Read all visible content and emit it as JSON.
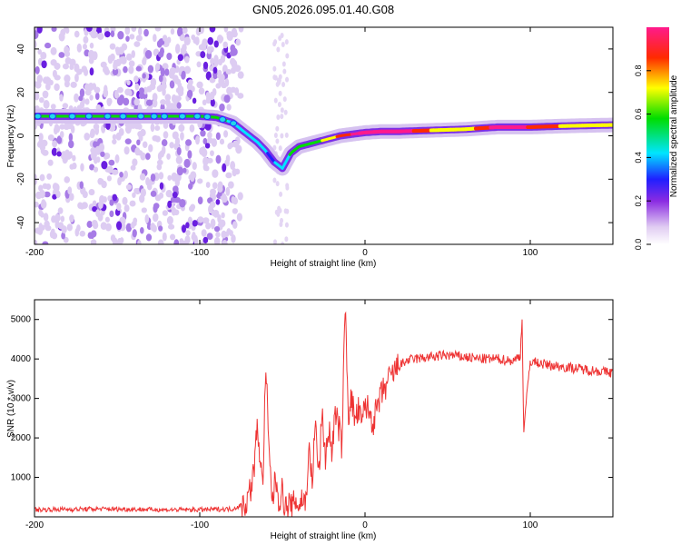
{
  "title": "GN05.2026.095.01.40.G08",
  "chart_data": [
    {
      "type": "heatmap",
      "title": "GN05.2026.095.01.40.G08",
      "xlabel": "Height of straight line (km)",
      "ylabel": "Frequency (Hz)",
      "xlim": [
        -200,
        150
      ],
      "ylim": [
        -50,
        50
      ],
      "x_ticks": [
        -200,
        -100,
        0,
        100
      ],
      "y_ticks": [
        -40,
        -20,
        0,
        20,
        40
      ],
      "x_tick_labels": [
        "-200",
        "-100",
        "0",
        "100"
      ],
      "y_tick_labels": [
        "-40",
        "-20",
        "0",
        "20",
        "40"
      ],
      "colorbar": {
        "label": "Normalized spectral amplitude",
        "range": [
          0,
          1
        ],
        "ticks": [
          0.0,
          0.2,
          0.4,
          0.6,
          0.8
        ],
        "tick_labels": [
          "0.0",
          "0.2",
          "0.4",
          "0.6",
          "0.8"
        ]
      },
      "ridge": {
        "x": [
          -200,
          -180,
          -160,
          -140,
          -120,
          -100,
          -90,
          -80,
          -75,
          -70,
          -65,
          -60,
          -55,
          -50,
          -45,
          -40,
          -35,
          -30,
          -25,
          -20,
          -15,
          -10,
          -5,
          0,
          10,
          20,
          40,
          60,
          80,
          100,
          120,
          150
        ],
        "frequency": [
          9,
          9,
          9,
          9,
          9,
          9,
          8.5,
          6,
          3,
          0,
          -3,
          -7,
          -12,
          -15,
          -8,
          -5,
          -4,
          -3,
          -2,
          -1,
          0,
          0.5,
          1,
          1.5,
          2,
          2,
          2.5,
          3,
          4,
          4,
          4.5,
          5
        ],
        "amplitude": [
          0.45,
          0.5,
          0.5,
          0.45,
          0.5,
          0.45,
          0.45,
          0.4,
          0.4,
          0.35,
          0.35,
          0.3,
          0.3,
          0.35,
          0.45,
          0.45,
          0.55,
          0.55,
          0.6,
          0.65,
          0.8,
          0.85,
          0.9,
          0.95,
          0.95,
          1.0,
          0.7,
          0.6,
          0.95,
          0.85,
          0.7,
          0.6
        ]
      },
      "noise_region": {
        "x_from": -200,
        "x_to": -75,
        "note": "scattered low-amplitude spectral noise"
      }
    },
    {
      "type": "line",
      "title": "",
      "xlabel": "Height of straight line (km)",
      "ylabel": "SNR (10 * v/v)",
      "xlim": [
        -200,
        150
      ],
      "ylim": [
        0,
        5500
      ],
      "x_ticks": [
        -200,
        -100,
        0,
        100
      ],
      "y_ticks": [
        1000,
        2000,
        3000,
        4000,
        5000
      ],
      "x_tick_labels": [
        "-200",
        "-100",
        "0",
        "100"
      ],
      "y_tick_labels": [
        "1000",
        "2000",
        "3000",
        "4000",
        "5000"
      ],
      "color": "#ee3333",
      "x": [
        -200,
        -160,
        -120,
        -100,
        -80,
        -72,
        -68,
        -65,
        -62,
        -60,
        -58,
        -56,
        -54,
        -52,
        -50,
        -48,
        -46,
        -44,
        -42,
        -40,
        -38,
        -36,
        -34,
        -32,
        -30,
        -28,
        -26,
        -24,
        -22,
        -20,
        -18,
        -16,
        -14,
        -12,
        -10,
        -8,
        -6,
        -4,
        -2,
        0,
        5,
        10,
        15,
        20,
        25,
        30,
        40,
        50,
        60,
        70,
        80,
        90,
        94,
        95,
        96,
        100,
        110,
        120,
        130,
        140,
        150
      ],
      "y": [
        180,
        200,
        180,
        180,
        200,
        350,
        900,
        2300,
        700,
        3800,
        1500,
        400,
        1000,
        400,
        650,
        200,
        300,
        200,
        450,
        250,
        500,
        300,
        1700,
        900,
        2400,
        1000,
        2600,
        1500,
        2200,
        1700,
        2600,
        2300,
        1800,
        5400,
        2600,
        3000,
        2400,
        2700,
        2300,
        2900,
        2400,
        3100,
        3500,
        3800,
        3950,
        4000,
        4050,
        4100,
        4050,
        4000,
        4000,
        3950,
        4100,
        5100,
        2200,
        3950,
        3850,
        3800,
        3750,
        3700,
        3650
      ]
    }
  ]
}
